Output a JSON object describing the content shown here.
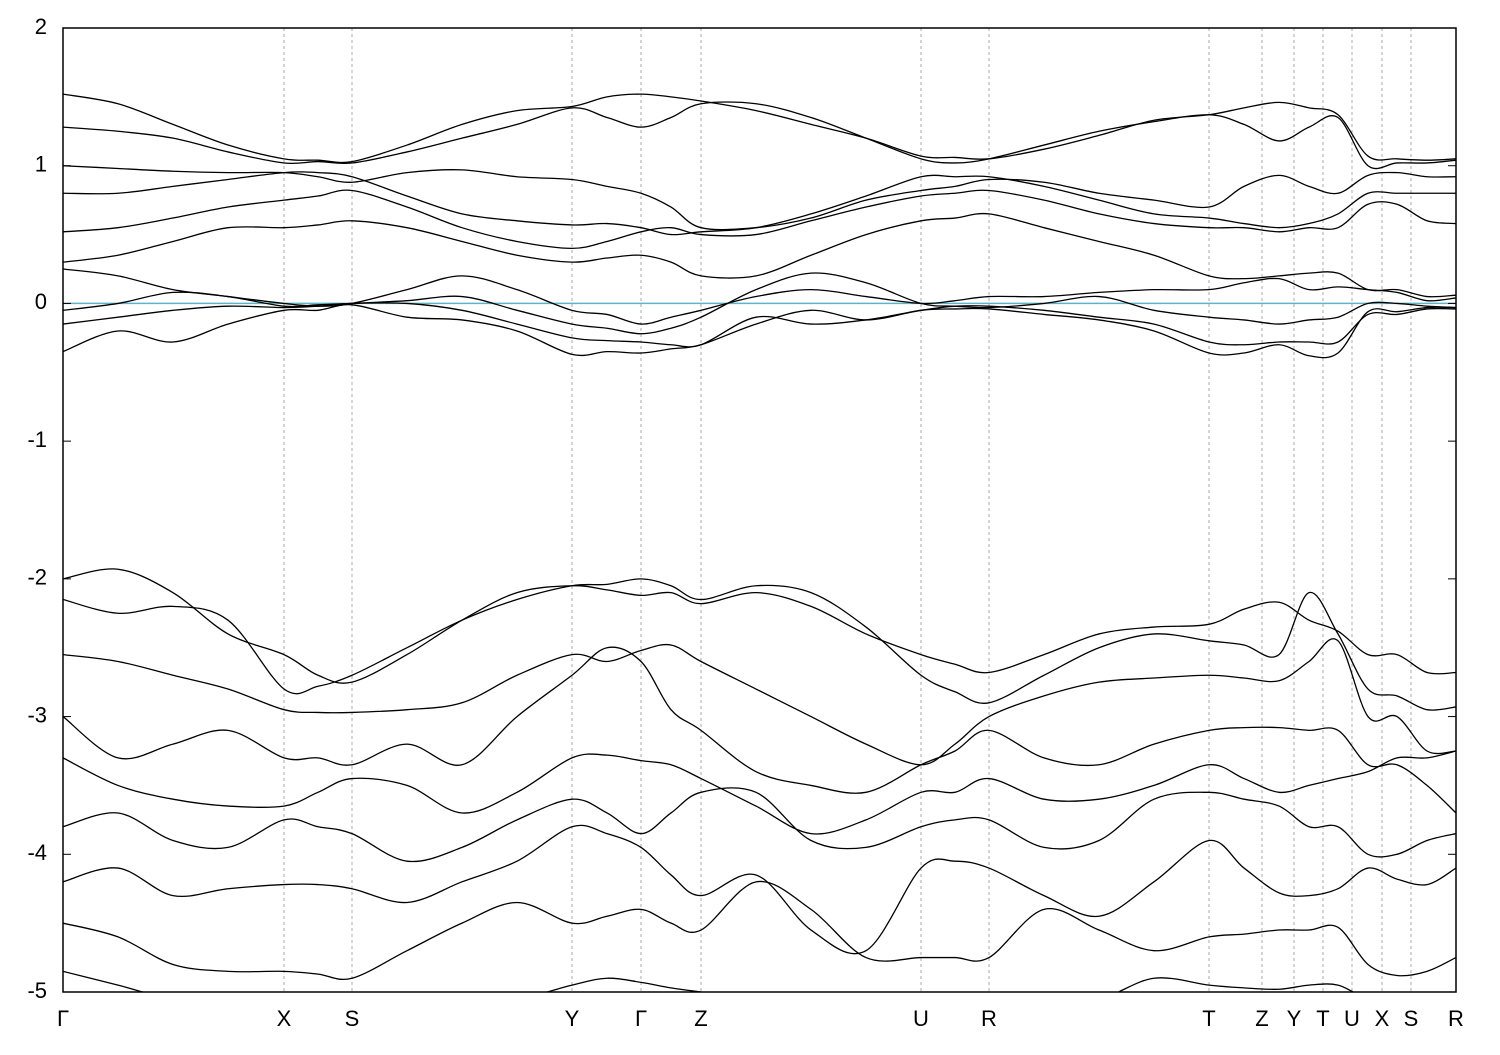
{
  "chart_data": {
    "type": "line",
    "color": "#000000",
    "reference_line": {
      "value": 0,
      "color": "#5fb3c6"
    },
    "xlim": [
      0,
      1393
    ],
    "xticks": [
      {
        "value": 0,
        "label": "Γ"
      },
      {
        "value": 221,
        "label": "X"
      },
      {
        "value": 289,
        "label": "S"
      },
      {
        "value": 509,
        "label": "Y"
      },
      {
        "value": 578,
        "label": "Γ"
      },
      {
        "value": 638,
        "label": "Z"
      },
      {
        "value": 858,
        "label": "U"
      },
      {
        "value": 926,
        "label": "R"
      },
      {
        "value": 1146,
        "label": "T"
      },
      {
        "value": 1199,
        "label": "Z"
      },
      {
        "value": 1231,
        "label": "Y"
      },
      {
        "value": 1260,
        "label": "T"
      },
      {
        "value": 1289,
        "label": "U"
      },
      {
        "value": 1319,
        "label": "X"
      },
      {
        "value": 1348,
        "label": "S"
      },
      {
        "value": 1393,
        "label": "R"
      }
    ],
    "ylim": [
      -5,
      2
    ],
    "yticks": [
      -5,
      -4,
      -3,
      -2,
      -1,
      0,
      1,
      2
    ],
    "x": [
      0,
      55,
      110,
      165,
      221,
      255,
      289,
      344,
      399,
      454,
      509,
      544,
      578,
      608,
      638,
      693,
      748,
      803,
      858,
      892,
      926,
      981,
      1036,
      1091,
      1146,
      1181,
      1216,
      1246,
      1275,
      1305,
      1334,
      1364,
      1393
    ],
    "series": [
      {
        "values": [
          1.52,
          1.45,
          1.3,
          1.15,
          1.05,
          1.04,
          1.03,
          1.15,
          1.3,
          1.4,
          1.43,
          1.5,
          1.52,
          1.5,
          1.47,
          1.4,
          1.3,
          1.2,
          1.07,
          1.06,
          1.05,
          1.12,
          1.22,
          1.33,
          1.37,
          1.42,
          1.46,
          1.42,
          1.37,
          1.07,
          1.05,
          1.04,
          1.05
        ]
      },
      {
        "values": [
          1.28,
          1.25,
          1.2,
          1.1,
          1.02,
          1.03,
          1.02,
          1.1,
          1.2,
          1.3,
          1.42,
          1.35,
          1.28,
          1.35,
          1.45,
          1.45,
          1.35,
          1.2,
          1.05,
          1.02,
          1.05,
          1.15,
          1.25,
          1.32,
          1.37,
          1.3,
          1.18,
          1.28,
          1.35,
          1.0,
          1.02,
          1.02,
          1.04
        ]
      },
      {
        "values": [
          1.0,
          0.98,
          0.96,
          0.95,
          0.95,
          0.92,
          0.88,
          0.95,
          0.97,
          0.92,
          0.9,
          0.85,
          0.8,
          0.7,
          0.55,
          0.55,
          0.62,
          0.75,
          0.82,
          0.85,
          0.9,
          0.88,
          0.8,
          0.75,
          0.7,
          0.85,
          0.93,
          0.85,
          0.8,
          0.93,
          0.95,
          0.92,
          0.92
        ]
      },
      {
        "values": [
          0.8,
          0.8,
          0.85,
          0.9,
          0.95,
          0.95,
          0.92,
          0.78,
          0.65,
          0.6,
          0.57,
          0.58,
          0.55,
          0.5,
          0.52,
          0.55,
          0.65,
          0.78,
          0.92,
          0.92,
          0.92,
          0.85,
          0.75,
          0.65,
          0.62,
          0.58,
          0.55,
          0.58,
          0.65,
          0.8,
          0.8,
          0.8,
          0.8
        ]
      },
      {
        "values": [
          0.52,
          0.55,
          0.62,
          0.7,
          0.75,
          0.78,
          0.82,
          0.7,
          0.55,
          0.45,
          0.4,
          0.45,
          0.52,
          0.55,
          0.5,
          0.5,
          0.6,
          0.7,
          0.78,
          0.8,
          0.82,
          0.75,
          0.65,
          0.58,
          0.55,
          0.55,
          0.52,
          0.55,
          0.55,
          0.72,
          0.72,
          0.6,
          0.58
        ]
      },
      {
        "values": [
          0.3,
          0.35,
          0.45,
          0.55,
          0.55,
          0.57,
          0.6,
          0.55,
          0.45,
          0.35,
          0.3,
          0.33,
          0.35,
          0.3,
          0.2,
          0.2,
          0.35,
          0.5,
          0.6,
          0.62,
          0.65,
          0.55,
          0.45,
          0.35,
          0.2,
          0.18,
          0.2,
          0.22,
          0.22,
          0.1,
          0.1,
          0.05,
          0.06
        ]
      },
      {
        "values": [
          0.25,
          0.2,
          0.1,
          0.05,
          0.0,
          -0.02,
          0.0,
          0.1,
          0.2,
          0.1,
          -0.05,
          -0.08,
          -0.15,
          -0.1,
          -0.05,
          0.05,
          0.1,
          0.05,
          0.0,
          0.02,
          0.05,
          0.05,
          0.08,
          0.1,
          0.1,
          0.15,
          0.18,
          0.1,
          0.12,
          0.1,
          0.08,
          0.02,
          0.04
        ]
      },
      {
        "values": [
          -0.05,
          0.0,
          0.08,
          0.05,
          -0.02,
          -0.01,
          0.0,
          0.02,
          0.05,
          -0.05,
          -0.15,
          -0.18,
          -0.22,
          -0.18,
          -0.1,
          0.1,
          0.22,
          0.15,
          0.0,
          -0.02,
          -0.03,
          0.0,
          0.05,
          -0.05,
          -0.1,
          -0.12,
          -0.15,
          -0.12,
          -0.1,
          0.0,
          0.0,
          -0.02,
          -0.03
        ]
      },
      {
        "values": [
          -0.15,
          -0.1,
          -0.05,
          -0.02,
          -0.03,
          -0.02,
          0.0,
          0.0,
          -0.05,
          -0.15,
          -0.25,
          -0.27,
          -0.28,
          -0.3,
          -0.3,
          -0.1,
          -0.15,
          -0.12,
          -0.05,
          -0.02,
          -0.02,
          -0.05,
          -0.1,
          -0.15,
          -0.28,
          -0.3,
          -0.28,
          -0.28,
          -0.28,
          -0.08,
          -0.08,
          -0.04,
          -0.04
        ]
      },
      {
        "values": [
          -0.35,
          -0.2,
          -0.28,
          -0.15,
          -0.05,
          -0.05,
          -0.01,
          -0.1,
          -0.12,
          -0.2,
          -0.37,
          -0.35,
          -0.36,
          -0.33,
          -0.3,
          -0.15,
          -0.05,
          -0.12,
          -0.05,
          -0.04,
          -0.04,
          -0.08,
          -0.12,
          -0.2,
          -0.36,
          -0.36,
          -0.3,
          -0.38,
          -0.36,
          -0.06,
          -0.06,
          -0.03,
          -0.03
        ]
      },
      {
        "values": [
          -2.0,
          -1.93,
          -2.1,
          -2.4,
          -2.55,
          -2.7,
          -2.75,
          -2.55,
          -2.3,
          -2.1,
          -2.05,
          -2.08,
          -2.12,
          -2.1,
          -2.18,
          -2.1,
          -2.2,
          -2.4,
          -2.55,
          -2.62,
          -2.68,
          -2.55,
          -2.4,
          -2.35,
          -2.33,
          -2.22,
          -2.17,
          -2.3,
          -2.38,
          -2.55,
          -2.55,
          -2.68,
          -2.68
        ]
      },
      {
        "values": [
          -2.15,
          -2.25,
          -2.2,
          -2.3,
          -2.8,
          -2.78,
          -2.7,
          -2.5,
          -2.3,
          -2.15,
          -2.05,
          -2.04,
          -2.0,
          -2.05,
          -2.15,
          -2.05,
          -2.1,
          -2.35,
          -2.7,
          -2.82,
          -2.9,
          -2.7,
          -2.5,
          -2.4,
          -2.45,
          -2.48,
          -2.55,
          -2.1,
          -2.4,
          -2.8,
          -2.85,
          -2.95,
          -2.93
        ]
      },
      {
        "values": [
          -2.55,
          -2.6,
          -2.7,
          -2.8,
          -2.95,
          -2.97,
          -2.97,
          -2.95,
          -2.9,
          -2.7,
          -2.55,
          -2.6,
          -2.52,
          -2.48,
          -2.6,
          -2.8,
          -3.0,
          -3.2,
          -3.35,
          -3.2,
          -3.0,
          -2.85,
          -2.75,
          -2.72,
          -2.7,
          -2.72,
          -2.74,
          -2.6,
          -2.45,
          -3.0,
          -3.0,
          -3.25,
          -3.25
        ]
      },
      {
        "values": [
          -3.0,
          -3.3,
          -3.2,
          -3.1,
          -3.3,
          -3.3,
          -3.35,
          -3.2,
          -3.35,
          -3.0,
          -2.7,
          -2.5,
          -2.6,
          -2.95,
          -3.1,
          -3.4,
          -3.5,
          -3.55,
          -3.35,
          -3.25,
          -3.1,
          -3.3,
          -3.35,
          -3.2,
          -3.1,
          -3.08,
          -3.08,
          -3.1,
          -3.1,
          -3.35,
          -3.35,
          -3.5,
          -3.7
        ]
      },
      {
        "values": [
          -3.3,
          -3.5,
          -3.6,
          -3.65,
          -3.65,
          -3.55,
          -3.45,
          -3.5,
          -3.7,
          -3.55,
          -3.3,
          -3.28,
          -3.32,
          -3.35,
          -3.45,
          -3.65,
          -3.85,
          -3.75,
          -3.55,
          -3.55,
          -3.45,
          -3.6,
          -3.6,
          -3.5,
          -3.35,
          -3.45,
          -3.55,
          -3.5,
          -3.45,
          -3.4,
          -3.3,
          -3.3,
          -3.25
        ]
      },
      {
        "values": [
          -3.8,
          -3.7,
          -3.9,
          -3.95,
          -3.75,
          -3.8,
          -3.85,
          -4.05,
          -3.95,
          -3.75,
          -3.6,
          -3.7,
          -3.85,
          -3.7,
          -3.55,
          -3.55,
          -3.9,
          -3.95,
          -3.8,
          -3.75,
          -3.75,
          -3.95,
          -3.9,
          -3.6,
          -3.55,
          -3.6,
          -3.65,
          -3.8,
          -3.8,
          -4.0,
          -4.0,
          -3.9,
          -3.85
        ]
      },
      {
        "values": [
          -4.2,
          -4.1,
          -4.3,
          -4.25,
          -4.22,
          -4.22,
          -4.25,
          -4.35,
          -4.2,
          -4.05,
          -3.8,
          -3.85,
          -3.95,
          -4.15,
          -4.3,
          -4.15,
          -4.55,
          -4.7,
          -4.1,
          -4.05,
          -4.1,
          -4.3,
          -4.45,
          -4.2,
          -3.9,
          -4.1,
          -4.28,
          -4.3,
          -4.25,
          -4.1,
          -4.18,
          -4.22,
          -4.1
        ]
      },
      {
        "values": [
          -4.5,
          -4.6,
          -4.8,
          -4.85,
          -4.85,
          -4.87,
          -4.9,
          -4.7,
          -4.5,
          -4.35,
          -4.5,
          -4.45,
          -4.4,
          -4.5,
          -4.55,
          -4.2,
          -4.4,
          -4.75,
          -4.75,
          -4.75,
          -4.75,
          -4.4,
          -4.55,
          -4.7,
          -4.6,
          -4.58,
          -4.55,
          -4.55,
          -4.53,
          -4.8,
          -4.88,
          -4.85,
          -4.75
        ]
      },
      {
        "values": [
          -4.85,
          -4.95,
          -5.05,
          -5.05,
          -5.05,
          -5.05,
          -5.05,
          -5.05,
          -5.05,
          -5.05,
          -4.95,
          -4.9,
          -4.93,
          -4.97,
          -5.0,
          -5.05,
          -5.05,
          -5.05,
          -5.05,
          -5.05,
          -5.05,
          -5.05,
          -5.05,
          -4.9,
          -4.95,
          -4.97,
          -4.98,
          -4.95,
          -4.95,
          -5.05,
          -5.05,
          -5.05,
          -5.05
        ]
      }
    ]
  }
}
